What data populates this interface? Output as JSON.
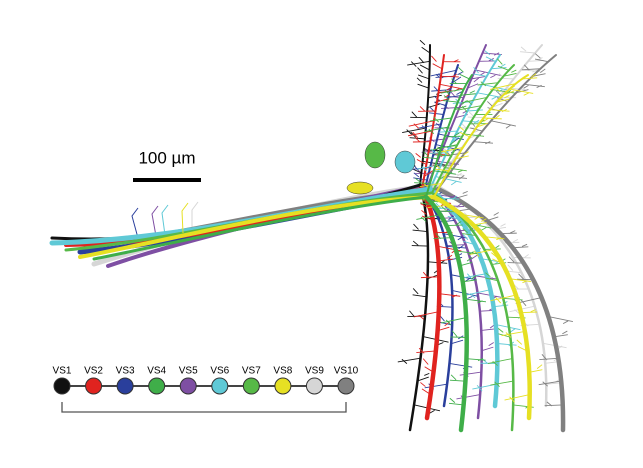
{
  "scale_bar": {
    "label": "100 µm"
  },
  "legend": {
    "items": [
      {
        "label": "VS1",
        "color": "#111111"
      },
      {
        "label": "VS2",
        "color": "#e0231f"
      },
      {
        "label": "VS3",
        "color": "#2a3f9c"
      },
      {
        "label": "VS4",
        "color": "#3fae49"
      },
      {
        "label": "VS5",
        "color": "#7e4fa3"
      },
      {
        "label": "VS6",
        "color": "#5fc9d6"
      },
      {
        "label": "VS7",
        "color": "#57b947"
      },
      {
        "label": "VS8",
        "color": "#e6e023"
      },
      {
        "label": "VS9",
        "color": "#d6d6d6"
      },
      {
        "label": "VS10",
        "color": "#808080"
      }
    ]
  }
}
